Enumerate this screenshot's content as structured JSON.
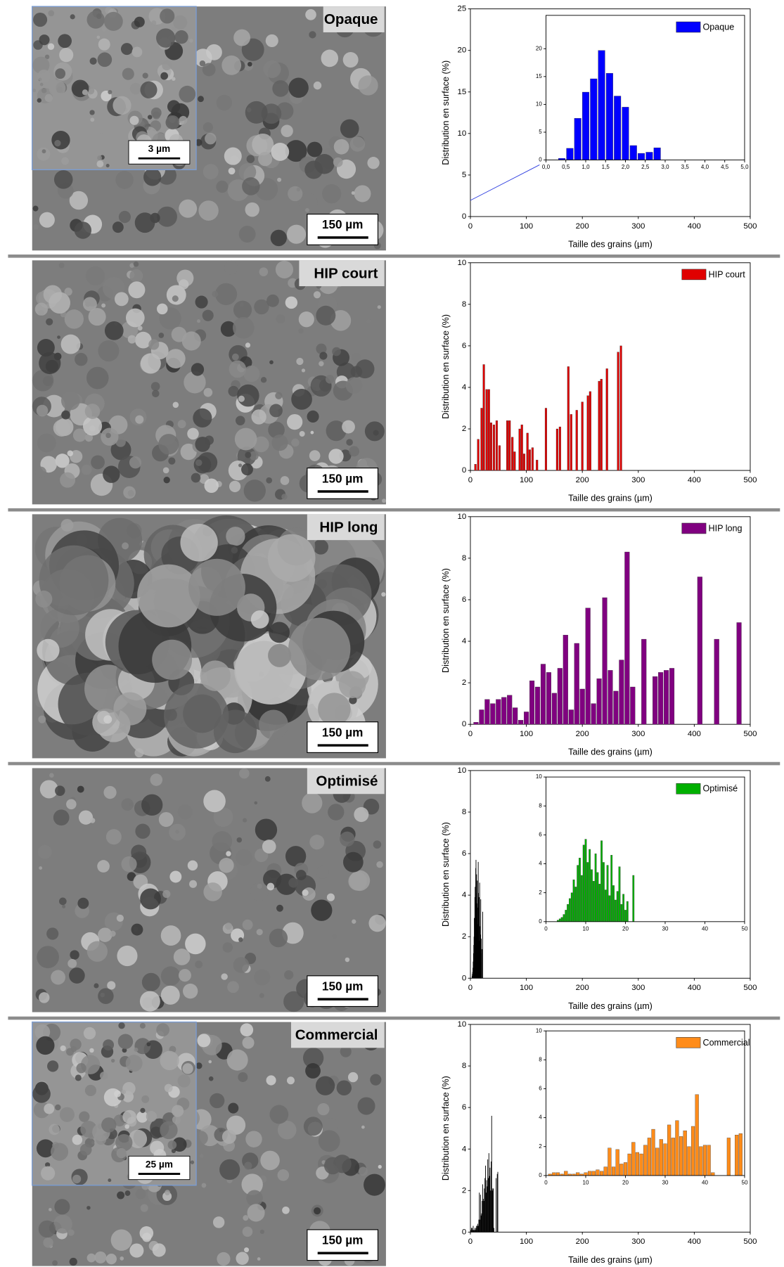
{
  "chart_data": [
    {
      "type": "bar",
      "image_label": "Opaque",
      "scale_bar": "150 µm",
      "inset_scale_bar": "3 µm",
      "xlabel": "Taille des grains (µm)",
      "ylabel": "Distribution en surface (%)",
      "xlim": [
        0,
        500
      ],
      "xticks": [
        0,
        100,
        200,
        300,
        400,
        500
      ],
      "ylim": [
        0,
        25
      ],
      "yticks": [
        0,
        5,
        10,
        15,
        20,
        25
      ],
      "inset": {
        "xlim": [
          0,
          5
        ],
        "xticks": [
          {
            "value": 0,
            "label": "0,0"
          },
          {
            "value": 0.5,
            "label": "0,5"
          },
          {
            "value": 1,
            "label": "1,0"
          },
          {
            "value": 1.5,
            "label": "1,5"
          },
          {
            "value": 2,
            "label": "2,0"
          },
          {
            "value": 2.5,
            "label": "2,5"
          },
          {
            "value": 3,
            "label": "3,0"
          },
          {
            "value": 3.5,
            "label": "3,5"
          },
          {
            "value": 4,
            "label": "4,0"
          },
          {
            "value": 4.5,
            "label": "4,5"
          },
          {
            "value": 5,
            "label": "5,0"
          }
        ],
        "ylim": [
          0,
          26
        ],
        "yticks": [
          0,
          5,
          10,
          15,
          20
        ],
        "series": [
          {
            "name": "Opaque",
            "color": "#0000ff",
            "x": [
              0.4,
              0.6,
              0.8,
              1.0,
              1.2,
              1.4,
              1.6,
              1.8,
              2.0,
              2.2,
              2.4,
              2.6,
              2.8
            ],
            "values": [
              0.3,
              2.1,
              7.5,
              12.2,
              14.6,
              19.7,
              15.6,
              11.5,
              9.5,
              2.6,
              1.2,
              1.4,
              2.2
            ]
          }
        ]
      }
    },
    {
      "type": "bar",
      "image_label": "HIP court",
      "scale_bar": "150 µm",
      "xlabel": "Taille des grains (µm)",
      "ylabel": "Distribution en surface (%)",
      "xlim": [
        0,
        500
      ],
      "xticks": [
        0,
        100,
        200,
        300,
        400,
        500
      ],
      "ylim": [
        0,
        10
      ],
      "yticks": [
        0,
        2,
        4,
        6,
        8,
        10
      ],
      "series": [
        {
          "name": "HIP court",
          "color": "#e00000",
          "x": [
            9,
            14,
            20,
            24,
            29,
            33,
            37,
            42,
            47,
            52,
            66,
            70,
            75,
            79,
            88,
            92,
            96,
            102,
            106,
            111,
            119,
            135,
            155,
            160,
            175,
            180,
            190,
            200,
            210,
            214,
            230,
            234,
            244,
            264,
            269
          ],
          "values": [
            0.3,
            1.5,
            3.0,
            5.1,
            3.9,
            3.9,
            2.3,
            2.2,
            2.4,
            1.2,
            2.4,
            2.4,
            1.6,
            0.9,
            2.0,
            2.2,
            0.8,
            1.8,
            1.0,
            1.1,
            0.5,
            3.0,
            2.0,
            2.1,
            5.0,
            2.7,
            2.9,
            3.3,
            3.6,
            3.8,
            4.3,
            4.4,
            4.9,
            5.7,
            6.0
          ]
        }
      ]
    },
    {
      "type": "bar",
      "image_label": "HIP long",
      "scale_bar": "150 µm",
      "xlabel": "Taille des grains (µm)",
      "ylabel": "Distribution en surface (%)",
      "xlim": [
        0,
        500
      ],
      "xticks": [
        0,
        100,
        200,
        300,
        400,
        500
      ],
      "ylim": [
        0,
        10
      ],
      "yticks": [
        0,
        2,
        4,
        6,
        8,
        10
      ],
      "series": [
        {
          "name": "HIP long",
          "color": "#800080",
          "x": [
            10,
            20,
            30,
            40,
            50,
            60,
            70,
            80,
            90,
            100,
            110,
            120,
            130,
            140,
            150,
            160,
            170,
            180,
            190,
            200,
            210,
            220,
            230,
            240,
            250,
            260,
            270,
            280,
            290,
            310,
            330,
            340,
            350,
            360,
            410,
            440,
            480
          ],
          "values": [
            0.1,
            0.7,
            1.2,
            1.0,
            1.2,
            1.3,
            1.4,
            0.8,
            0.2,
            0.6,
            2.1,
            1.8,
            2.9,
            2.5,
            1.5,
            2.7,
            4.3,
            0.7,
            3.9,
            1.7,
            5.6,
            1.0,
            2.2,
            6.1,
            2.6,
            1.6,
            3.1,
            8.3,
            1.8,
            4.1,
            2.3,
            2.5,
            2.6,
            2.7,
            7.1,
            4.1,
            4.9
          ]
        }
      ]
    },
    {
      "type": "bar",
      "image_label": "Optimisé",
      "scale_bar": "150 µm",
      "xlabel": "Taille des grains (µm)",
      "ylabel": "Distribution en surface (%)",
      "xlim": [
        0,
        500
      ],
      "xticks": [
        0,
        100,
        200,
        300,
        400,
        500
      ],
      "ylim": [
        0,
        10
      ],
      "yticks": [
        0,
        2,
        4,
        6,
        8,
        10
      ],
      "main_bar_color": "#000000",
      "inset": {
        "xlim": [
          0,
          50
        ],
        "xticks": [
          0,
          10,
          20,
          30,
          40,
          50
        ],
        "ylim": [
          0,
          10
        ],
        "yticks": [
          0,
          2,
          4,
          6,
          8,
          10
        ],
        "series": [
          {
            "name": "Optimisé",
            "color": "#00b000",
            "x": [
              3.0,
              3.5,
              4.0,
              4.5,
              5.0,
              5.5,
              6.0,
              6.5,
              7.0,
              7.5,
              8.0,
              8.5,
              9.0,
              9.5,
              10.0,
              10.5,
              11.0,
              11.5,
              12.0,
              12.5,
              13.0,
              13.5,
              14.0,
              14.5,
              15.0,
              15.5,
              16.0,
              16.5,
              17.0,
              17.5,
              18.0,
              18.5,
              19.0,
              19.5,
              20.0,
              20.5,
              22.0
            ],
            "values": [
              0.1,
              0.2,
              0.3,
              0.5,
              0.8,
              1.2,
              1.6,
              2.0,
              2.9,
              2.4,
              3.9,
              4.4,
              3.2,
              5.3,
              5.7,
              4.1,
              5.0,
              3.6,
              2.8,
              4.7,
              3.4,
              2.6,
              5.6,
              4.1,
              2.2,
              3.9,
              1.8,
              4.6,
              2.5,
              1.5,
              2.1,
              3.8,
              1.2,
              1.9,
              0.8,
              1.4,
              3.2
            ]
          }
        ]
      }
    },
    {
      "type": "bar",
      "image_label": "Commercial",
      "scale_bar": "150 µm",
      "inset_scale_bar": "25 µm",
      "xlabel": "Taille des grains (µm)",
      "ylabel": "Distribution en surface (%)",
      "xlim": [
        0,
        500
      ],
      "xticks": [
        0,
        100,
        200,
        300,
        400,
        500
      ],
      "ylim": [
        0,
        10
      ],
      "yticks": [
        0,
        2,
        4,
        6,
        8,
        10
      ],
      "main_bar_color": "#000000",
      "inset": {
        "xlim": [
          0,
          50
        ],
        "xticks": [
          0,
          10,
          20,
          30,
          40,
          50
        ],
        "ylim": [
          0,
          10
        ],
        "yticks": [
          0,
          2,
          4,
          6,
          8,
          10
        ],
        "series": [
          {
            "name": "Commercial",
            "color": "#ff8c1a",
            "x": [
              1,
              2,
              3,
              4,
              5,
              6,
              7,
              8,
              9,
              10,
              11,
              12,
              13,
              14,
              15,
              16,
              17,
              18,
              19,
              20,
              21,
              22,
              23,
              24,
              25,
              26,
              27,
              28,
              29,
              30,
              31,
              32,
              33,
              34,
              35,
              36,
              37,
              38,
              39,
              40,
              41,
              42,
              46,
              48,
              49
            ],
            "values": [
              0.1,
              0.2,
              0.2,
              0.1,
              0.3,
              0.1,
              0.1,
              0.2,
              0.1,
              0.2,
              0.3,
              0.3,
              0.4,
              0.3,
              0.6,
              1.9,
              0.6,
              1.8,
              0.8,
              0.9,
              1.5,
              2.3,
              1.6,
              1.5,
              2.1,
              2.6,
              3.2,
              1.9,
              2.5,
              2.2,
              3.5,
              2.6,
              3.8,
              2.7,
              3.1,
              2.0,
              3.4,
              5.6,
              2.0,
              2.1,
              2.1,
              0.2,
              2.6,
              2.8,
              2.9
            ]
          }
        ]
      }
    }
  ]
}
